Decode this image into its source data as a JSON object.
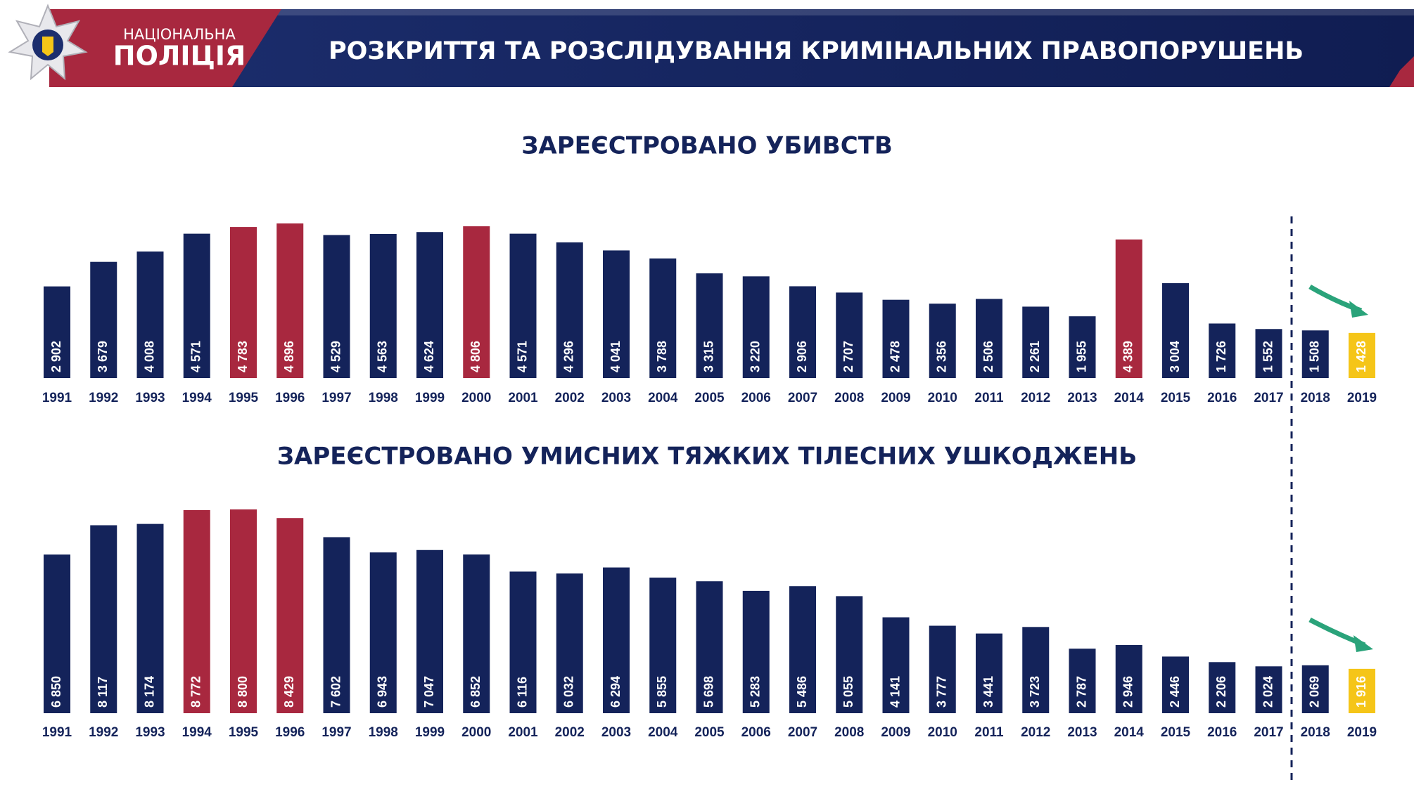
{
  "header": {
    "org_line1": "НАЦІОНАЛЬНА",
    "org_line2": "ПОЛІЦІЯ",
    "title": "РОЗКРИТТЯ ТА РОЗСЛІДУВАННЯ КРИМІНАЛЬНИХ ПРАВОПОРУШЕНЬ"
  },
  "chart_data": [
    {
      "type": "bar",
      "title": "ЗАРЕЄСТРОВАНО УБИВСТВ",
      "categories": [
        "1991",
        "1992",
        "1993",
        "1994",
        "1995",
        "1996",
        "1997",
        "1998",
        "1999",
        "2000",
        "2001",
        "2002",
        "2003",
        "2004",
        "2005",
        "2006",
        "2007",
        "2008",
        "2009",
        "2010",
        "2011",
        "2012",
        "2013",
        "2014",
        "2015",
        "2016",
        "2017",
        "2018",
        "2019"
      ],
      "values": [
        2902,
        3679,
        4008,
        4571,
        4783,
        4896,
        4529,
        4563,
        4624,
        4806,
        4571,
        4296,
        4041,
        3788,
        3315,
        3220,
        2906,
        2707,
        2478,
        2356,
        2506,
        2261,
        1955,
        4389,
        3004,
        1726,
        1552,
        1508,
        1428
      ],
      "value_labels": [
        "2 902",
        "3 679",
        "4 008",
        "4 571",
        "4 783",
        "4 896",
        "4 529",
        "4 563",
        "4 624",
        "4 806",
        "4 571",
        "4 296",
        "4 041",
        "3 788",
        "3 315",
        "3 220",
        "2 906",
        "2 707",
        "2 478",
        "2 356",
        "2 506",
        "2 261",
        "1 955",
        "4 389",
        "3 004",
        "1 726",
        "1 552",
        "1 508",
        "1 428"
      ],
      "colors": [
        "#14235a",
        "#14235a",
        "#14235a",
        "#14235a",
        "#a8283f",
        "#a8283f",
        "#14235a",
        "#14235a",
        "#14235a",
        "#a8283f",
        "#14235a",
        "#14235a",
        "#14235a",
        "#14235a",
        "#14235a",
        "#14235a",
        "#14235a",
        "#14235a",
        "#14235a",
        "#14235a",
        "#14235a",
        "#14235a",
        "#14235a",
        "#a8283f",
        "#14235a",
        "#14235a",
        "#14235a",
        "#14235a",
        "#f5c518"
      ]
    },
    {
      "type": "bar",
      "title": "ЗАРЕЄСТРОВАНО  УМИСНИХ ТЯЖКИХ ТІЛЕСНИХ УШКОДЖЕНЬ",
      "categories": [
        "1991",
        "1992",
        "1993",
        "1994",
        "1995",
        "1996",
        "1997",
        "1998",
        "1999",
        "2000",
        "2001",
        "2002",
        "2003",
        "2004",
        "2005",
        "2006",
        "2007",
        "2008",
        "2009",
        "2010",
        "2011",
        "2012",
        "2013",
        "2014",
        "2015",
        "2016",
        "2017",
        "2018",
        "2019"
      ],
      "values": [
        6850,
        8117,
        8174,
        8772,
        8800,
        8429,
        7602,
        6943,
        7047,
        6852,
        6116,
        6032,
        6294,
        5855,
        5698,
        5283,
        5486,
        5055,
        4141,
        3777,
        3441,
        3723,
        2787,
        2946,
        2446,
        2206,
        2024,
        2069,
        1916
      ],
      "value_labels": [
        "6 850",
        "8 117",
        "8 174",
        "8 772",
        "8 800",
        "8 429",
        "7 602",
        "6 943",
        "7 047",
        "6 852",
        "6 116",
        "6 032",
        "6 294",
        "5 855",
        "5 698",
        "5 283",
        "5 486",
        "5 055",
        "4 141",
        "3 777",
        "3 441",
        "3 723",
        "2 787",
        "2 946",
        "2 446",
        "2 206",
        "2 024",
        "2 069",
        "1 916"
      ],
      "colors": [
        "#14235a",
        "#14235a",
        "#14235a",
        "#a8283f",
        "#a8283f",
        "#a8283f",
        "#14235a",
        "#14235a",
        "#14235a",
        "#14235a",
        "#14235a",
        "#14235a",
        "#14235a",
        "#14235a",
        "#14235a",
        "#14235a",
        "#14235a",
        "#14235a",
        "#14235a",
        "#14235a",
        "#14235a",
        "#14235a",
        "#14235a",
        "#14235a",
        "#14235a",
        "#14235a",
        "#14235a",
        "#14235a",
        "#f5c518"
      ]
    }
  ]
}
